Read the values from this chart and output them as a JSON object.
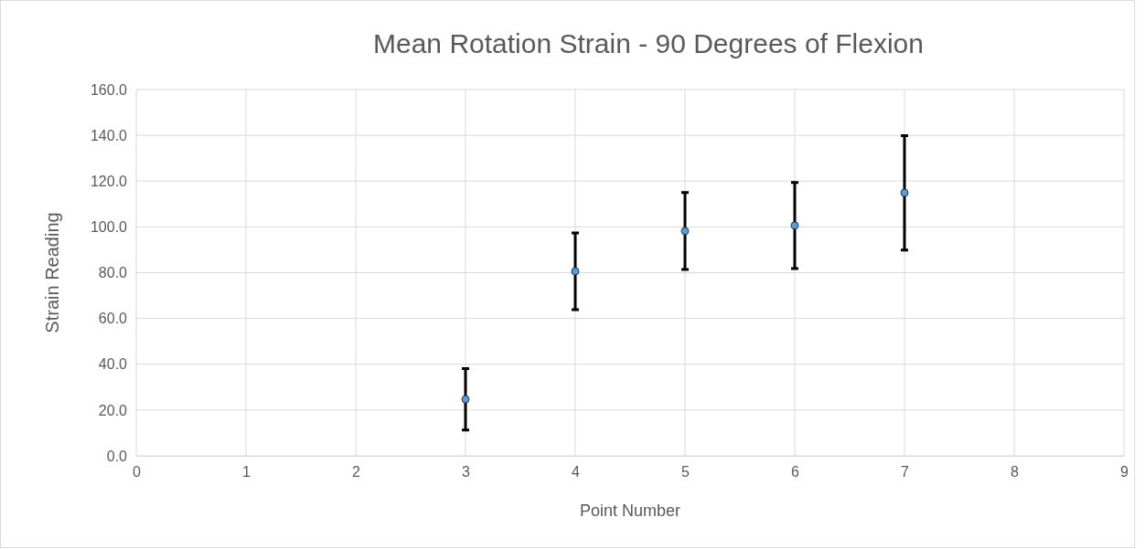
{
  "chart_data": {
    "type": "scatter",
    "title": "Mean Rotation Strain - 90 Degrees of Flexion",
    "xlabel": "Point Number",
    "ylabel": "Strain Reading",
    "x": [
      3,
      4,
      5,
      6,
      7
    ],
    "values": [
      24.7,
      80.6,
      98.2,
      100.6,
      114.9
    ],
    "errors": [
      13.4,
      16.8,
      16.8,
      18.8,
      25
    ],
    "color": "#5b9bd5",
    "marker": "circle",
    "xlim": [
      0,
      9
    ],
    "xticks": [
      0,
      1,
      2,
      3,
      4,
      5,
      6,
      7,
      8,
      9
    ],
    "ylim": [
      0,
      160
    ],
    "yticks": [
      {
        "value": 0,
        "label": "0.0"
      },
      {
        "value": 20,
        "label": "20.0"
      },
      {
        "value": 40,
        "label": "40.0"
      },
      {
        "value": 60,
        "label": "60.0"
      },
      {
        "value": 80,
        "label": "80.0"
      },
      {
        "value": 100,
        "label": "100.0"
      },
      {
        "value": 120,
        "label": "120.0"
      },
      {
        "value": 140,
        "label": "140.0"
      },
      {
        "value": 160,
        "label": "160.0"
      }
    ],
    "grid": true
  }
}
